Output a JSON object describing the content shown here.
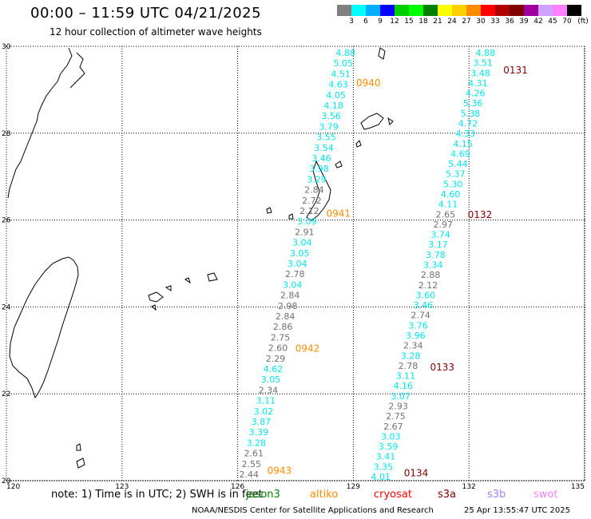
{
  "header": {
    "title": "00:00 – 11:59 UTC 04/21/2025",
    "subtitle": "12 hour collection of altimeter wave heights"
  },
  "legend": {
    "labels": [
      "3",
      "6",
      "9",
      "12",
      "15",
      "18",
      "21",
      "24",
      "27",
      "30",
      "33",
      "36",
      "39",
      "42",
      "45",
      "70"
    ],
    "unit": "(ft)",
    "colors": [
      "#808080",
      "#00ffff",
      "#00b0ff",
      "#0000ff",
      "#00d000",
      "#00ff00",
      "#008000",
      "#ffff00",
      "#ffd000",
      "#ff8c00",
      "#ff0000",
      "#b00000",
      "#800000",
      "#a000a0",
      "#d0a0ff",
      "#ff80ff",
      "#000000"
    ]
  },
  "axes": {
    "lon_labels": [
      "120",
      "123",
      "126",
      "129",
      "132",
      "135"
    ],
    "lat_labels": [
      "30",
      "28",
      "26",
      "24",
      "22",
      "20"
    ]
  },
  "colors": {
    "cyan": "#00e5ee",
    "gray": "#707070",
    "orange": "#ff8c00",
    "darkred": "#800000"
  },
  "tracks": [
    {
      "readings": [
        {
          "v": "4.88",
          "c": "cyan"
        },
        {
          "v": "5.05",
          "c": "cyan"
        },
        {
          "v": "4.51",
          "c": "cyan"
        },
        {
          "v": "4.63",
          "c": "cyan"
        },
        {
          "v": "4.05",
          "c": "cyan"
        },
        {
          "v": "4.18",
          "c": "cyan"
        },
        {
          "v": "3.56",
          "c": "cyan"
        },
        {
          "v": "3.79",
          "c": "cyan"
        },
        {
          "v": "3.55",
          "c": "cyan"
        },
        {
          "v": "3.54",
          "c": "cyan"
        },
        {
          "v": "3.46",
          "c": "cyan"
        },
        {
          "v": "3.98",
          "c": "cyan"
        },
        {
          "v": "3.29",
          "c": "cyan"
        },
        {
          "v": "2.84",
          "c": "gray"
        },
        {
          "v": "2.72",
          "c": "gray"
        },
        {
          "v": "2.12",
          "c": "gray"
        },
        {
          "v": "3.09",
          "c": "cyan"
        },
        {
          "v": "2.91",
          "c": "gray"
        },
        {
          "v": "3.04",
          "c": "cyan"
        },
        {
          "v": "3.05",
          "c": "cyan"
        },
        {
          "v": "3.04",
          "c": "cyan"
        },
        {
          "v": "2.78",
          "c": "gray"
        },
        {
          "v": "3.04",
          "c": "cyan"
        },
        {
          "v": "2.84",
          "c": "gray"
        },
        {
          "v": "2.98",
          "c": "gray"
        },
        {
          "v": "2.84",
          "c": "gray"
        },
        {
          "v": "2.86",
          "c": "gray"
        },
        {
          "v": "2.75",
          "c": "gray"
        },
        {
          "v": "2.60",
          "c": "gray"
        },
        {
          "v": "2.29",
          "c": "gray"
        },
        {
          "v": "4.62",
          "c": "cyan"
        },
        {
          "v": "3.05",
          "c": "cyan"
        },
        {
          "v": "2.34",
          "c": "gray"
        },
        {
          "v": "3.11",
          "c": "cyan"
        },
        {
          "v": "3.02",
          "c": "cyan"
        },
        {
          "v": "3.87",
          "c": "cyan"
        },
        {
          "v": "3.39",
          "c": "cyan"
        },
        {
          "v": "3.28",
          "c": "cyan"
        },
        {
          "v": "2.61",
          "c": "gray"
        },
        {
          "v": "2.55",
          "c": "gray"
        },
        {
          "v": "2.44",
          "c": "gray"
        }
      ],
      "times": [
        {
          "label": "0940",
          "c": "orange"
        },
        {
          "label": "0941",
          "c": "orange"
        },
        {
          "label": "0942",
          "c": "orange"
        },
        {
          "label": "0943",
          "c": "orange"
        }
      ]
    },
    {
      "readings": [
        {
          "v": "4.88",
          "c": "cyan"
        },
        {
          "v": "3.51",
          "c": "cyan"
        },
        {
          "v": "3.48",
          "c": "cyan"
        },
        {
          "v": "4.31",
          "c": "cyan"
        },
        {
          "v": "4.26",
          "c": "cyan"
        },
        {
          "v": "5.36",
          "c": "cyan"
        },
        {
          "v": "5.38",
          "c": "cyan"
        },
        {
          "v": "4.72",
          "c": "cyan"
        },
        {
          "v": "4.33",
          "c": "cyan"
        },
        {
          "v": "4.15",
          "c": "cyan"
        },
        {
          "v": "4.69",
          "c": "cyan"
        },
        {
          "v": "5.44",
          "c": "cyan"
        },
        {
          "v": "5.37",
          "c": "cyan"
        },
        {
          "v": "5.30",
          "c": "cyan"
        },
        {
          "v": "4.60",
          "c": "cyan"
        },
        {
          "v": "4.11",
          "c": "cyan"
        },
        {
          "v": "2.65",
          "c": "gray"
        },
        {
          "v": "2.97",
          "c": "gray"
        },
        {
          "v": "3.74",
          "c": "cyan"
        },
        {
          "v": "3.17",
          "c": "cyan"
        },
        {
          "v": "3.78",
          "c": "cyan"
        },
        {
          "v": "3.34",
          "c": "cyan"
        },
        {
          "v": "2.88",
          "c": "gray"
        },
        {
          "v": "2.12",
          "c": "gray"
        },
        {
          "v": "3.60",
          "c": "cyan"
        },
        {
          "v": "3.46",
          "c": "cyan"
        },
        {
          "v": "2.74",
          "c": "gray"
        },
        {
          "v": "3.76",
          "c": "cyan"
        },
        {
          "v": "3.96",
          "c": "cyan"
        },
        {
          "v": "2.34",
          "c": "gray"
        },
        {
          "v": "3.28",
          "c": "cyan"
        },
        {
          "v": "2.78",
          "c": "gray"
        },
        {
          "v": "3.11",
          "c": "cyan"
        },
        {
          "v": "4.16",
          "c": "cyan"
        },
        {
          "v": "3.07",
          "c": "cyan"
        },
        {
          "v": "2.93",
          "c": "gray"
        },
        {
          "v": "2.75",
          "c": "gray"
        },
        {
          "v": "2.67",
          "c": "gray"
        },
        {
          "v": "3.03",
          "c": "cyan"
        },
        {
          "v": "3.59",
          "c": "cyan"
        },
        {
          "v": "3.41",
          "c": "cyan"
        },
        {
          "v": "3.35",
          "c": "cyan"
        },
        {
          "v": "4.01",
          "c": "cyan"
        }
      ],
      "times": [
        {
          "label": "0131",
          "c": "darkred"
        },
        {
          "label": "0132",
          "c": "darkred"
        },
        {
          "label": "0133",
          "c": "darkred"
        },
        {
          "label": "0134",
          "c": "darkred"
        }
      ]
    }
  ],
  "footer": {
    "note": "note:  1) Time is in UTC;  2) SWH is in feet",
    "satellites": [
      {
        "name": "jason3",
        "color": "#008000"
      },
      {
        "name": "altiko",
        "color": "#ff8c00"
      },
      {
        "name": "cryosat",
        "color": "#ff0000"
      },
      {
        "name": "s3a",
        "color": "#800000"
      },
      {
        "name": "s3b",
        "color": "#a080ff"
      },
      {
        "name": "swot",
        "color": "#ff80ff"
      }
    ],
    "credit": "NOAA/NESDIS Center for Satellite Applications and Research",
    "timestamp": "25 Apr 13:55:47 UTC 2025"
  }
}
